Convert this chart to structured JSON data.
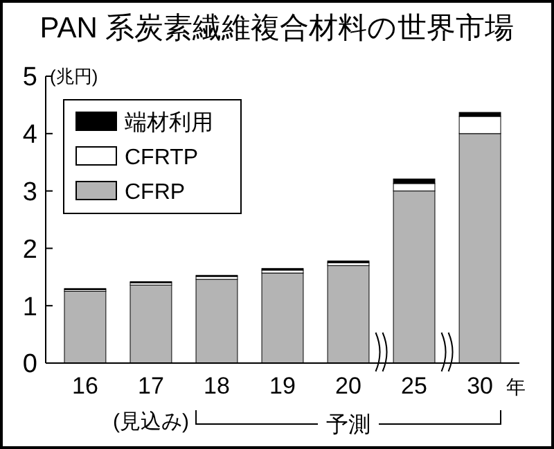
{
  "chart_data": {
    "type": "bar",
    "title": "PAN 系炭素繊維複合材料の世界市場",
    "ylabel": "(兆円)",
    "xlabel": "年",
    "stacked": true,
    "categories": [
      "16",
      "17",
      "18",
      "19",
      "20",
      "25",
      "30"
    ],
    "series": [
      {
        "name": "CFRP",
        "color": "#b4b4b4",
        "values": [
          1.25,
          1.36,
          1.46,
          1.57,
          1.7,
          3.0,
          4.0
        ]
      },
      {
        "name": "CFRTP",
        "color": "#ffffff",
        "values": [
          0.03,
          0.04,
          0.05,
          0.05,
          0.05,
          0.13,
          0.3
        ]
      },
      {
        "name": "端材利用",
        "color": "#000000",
        "values": [
          0.02,
          0.02,
          0.02,
          0.03,
          0.03,
          0.08,
          0.07
        ]
      }
    ],
    "ylim": [
      0,
      5
    ],
    "yticks": [
      0,
      1,
      2,
      3,
      4,
      5
    ],
    "grid": false,
    "legend": "top left",
    "annotations": [
      "(見込み)",
      "予測"
    ]
  }
}
